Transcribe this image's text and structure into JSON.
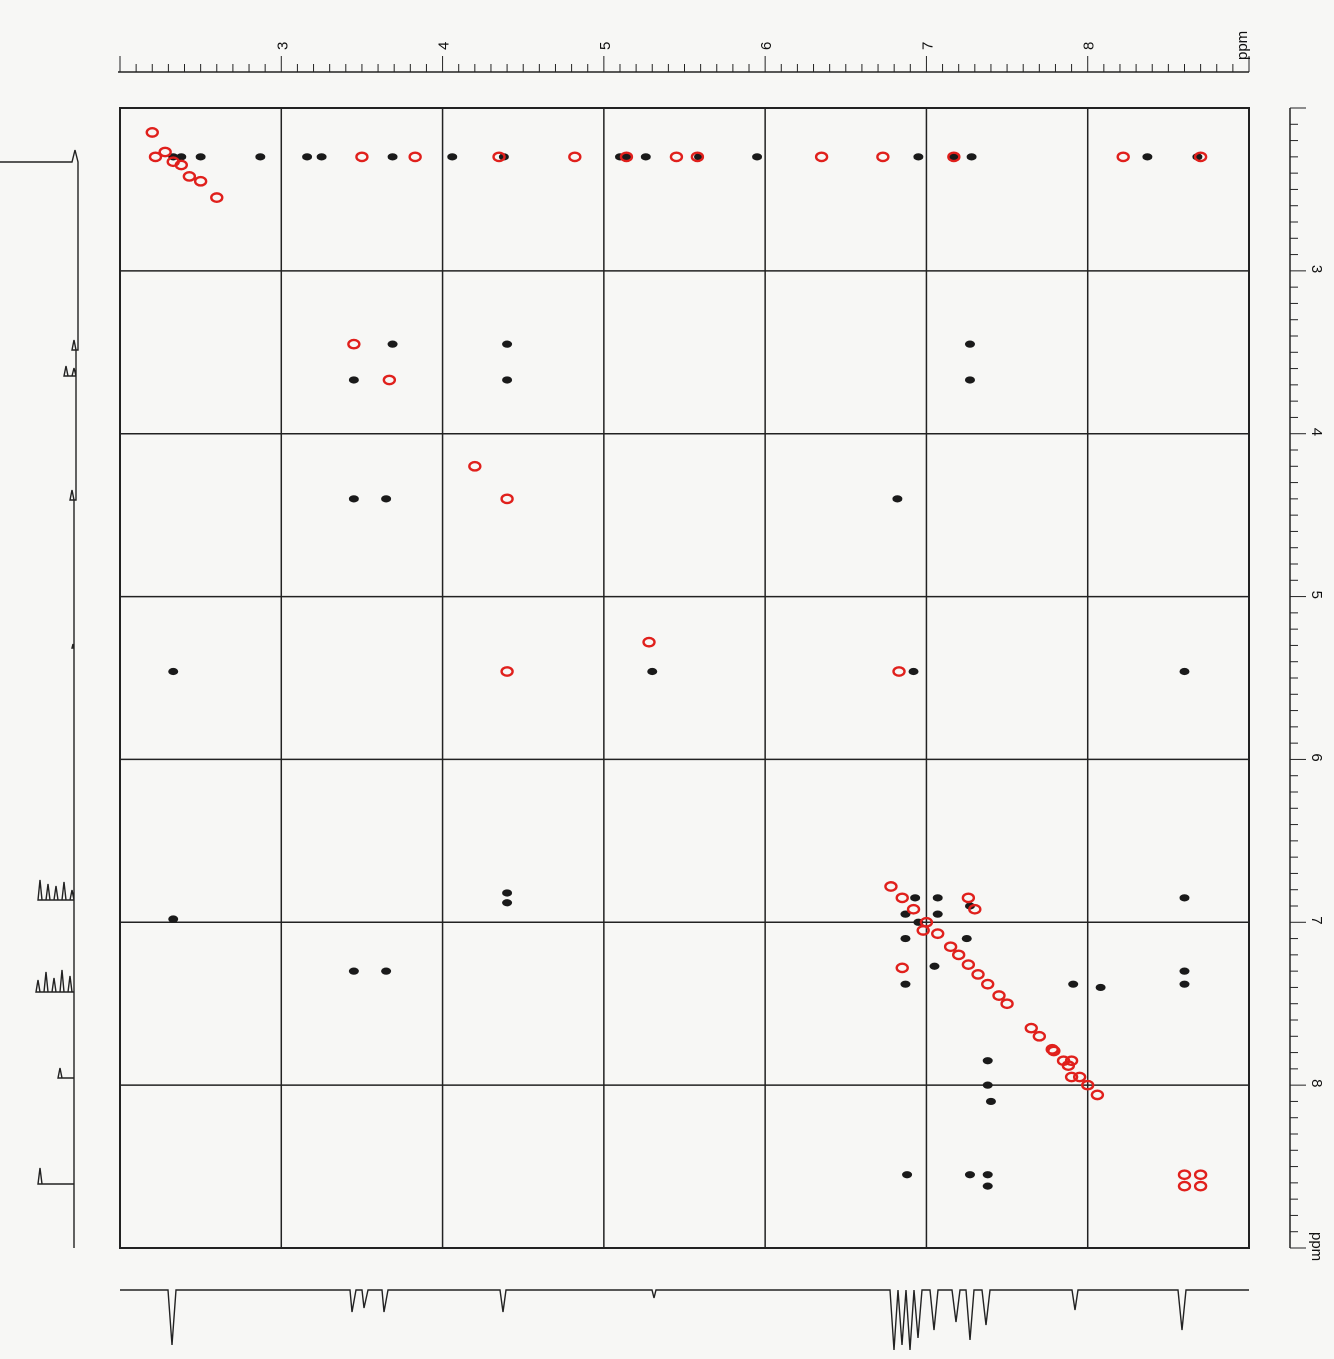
{
  "chart_data": {
    "type": "scatter",
    "title": "",
    "xlabel": "ppm",
    "ylabel": "ppm",
    "xlim": [
      2.0,
      9.0
    ],
    "ylim": [
      2.0,
      9.0
    ],
    "xticks": [
      "3",
      "4",
      "5",
      "6",
      "7",
      "8"
    ],
    "yticks": [
      "3",
      "4",
      "5",
      "6",
      "7",
      "8"
    ],
    "grid": true,
    "colors": {
      "positive": "#1a1a1a",
      "negative": "#e0201c",
      "axis": "#222222"
    },
    "series": [
      {
        "color": "#1a1a1a",
        "points": [
          [
            2.33,
            2.3
          ],
          [
            2.38,
            2.3
          ],
          [
            2.5,
            2.3
          ],
          [
            2.87,
            2.3
          ],
          [
            3.16,
            2.3
          ],
          [
            3.25,
            2.3
          ],
          [
            3.69,
            2.3
          ],
          [
            4.06,
            2.3
          ],
          [
            4.38,
            2.3
          ],
          [
            5.1,
            2.3
          ],
          [
            5.14,
            2.3
          ],
          [
            5.26,
            2.3
          ],
          [
            5.59,
            2.3
          ],
          [
            5.95,
            2.3
          ],
          [
            6.95,
            2.3
          ],
          [
            7.17,
            2.3
          ],
          [
            7.28,
            2.3
          ],
          [
            8.37,
            2.3
          ],
          [
            8.68,
            2.3
          ],
          [
            3.69,
            3.45
          ],
          [
            4.4,
            3.45
          ],
          [
            7.27,
            3.45
          ],
          [
            3.45,
            3.67
          ],
          [
            4.4,
            3.67
          ],
          [
            7.27,
            3.67
          ],
          [
            3.45,
            4.4
          ],
          [
            3.65,
            4.4
          ],
          [
            6.82,
            4.4
          ],
          [
            2.33,
            5.46
          ],
          [
            5.3,
            5.46
          ],
          [
            6.92,
            5.46
          ],
          [
            8.6,
            5.46
          ],
          [
            4.4,
            6.82
          ],
          [
            4.4,
            6.88
          ],
          [
            8.6,
            6.85
          ],
          [
            2.33,
            6.98
          ],
          [
            6.93,
            6.85
          ],
          [
            7.07,
            6.85
          ],
          [
            6.87,
            6.95
          ],
          [
            7.07,
            6.95
          ],
          [
            7.27,
            6.9
          ],
          [
            6.95,
            7.0
          ],
          [
            6.87,
            7.1
          ],
          [
            7.25,
            7.1
          ],
          [
            7.05,
            7.27
          ],
          [
            3.45,
            7.3
          ],
          [
            3.65,
            7.3
          ],
          [
            6.87,
            7.38
          ],
          [
            7.91,
            7.38
          ],
          [
            8.6,
            7.38
          ],
          [
            8.6,
            7.3
          ],
          [
            8.08,
            7.4
          ],
          [
            7.38,
            7.85
          ],
          [
            7.38,
            8.0
          ],
          [
            7.4,
            8.1
          ],
          [
            6.88,
            8.55
          ],
          [
            7.27,
            8.55
          ],
          [
            7.38,
            8.55
          ],
          [
            7.38,
            8.62
          ]
        ]
      },
      {
        "color": "#e0201c",
        "points": [
          [
            2.22,
            2.3
          ],
          [
            2.28,
            2.27
          ],
          [
            2.33,
            2.33
          ],
          [
            2.38,
            2.35
          ],
          [
            2.43,
            2.42
          ],
          [
            2.5,
            2.45
          ],
          [
            2.6,
            2.55
          ],
          [
            2.2,
            2.15
          ],
          [
            3.5,
            2.3
          ],
          [
            3.83,
            2.3
          ],
          [
            4.35,
            2.3
          ],
          [
            4.82,
            2.3
          ],
          [
            5.14,
            2.3
          ],
          [
            5.45,
            2.3
          ],
          [
            5.58,
            2.3
          ],
          [
            6.35,
            2.3
          ],
          [
            6.73,
            2.3
          ],
          [
            7.17,
            2.3
          ],
          [
            8.22,
            2.3
          ],
          [
            8.7,
            2.3
          ],
          [
            3.45,
            3.45
          ],
          [
            3.67,
            3.67
          ],
          [
            4.2,
            4.2
          ],
          [
            4.4,
            4.4
          ],
          [
            5.28,
            5.28
          ],
          [
            4.4,
            5.46
          ],
          [
            6.83,
            5.46
          ],
          [
            6.78,
            6.78
          ],
          [
            6.85,
            6.85
          ],
          [
            6.92,
            6.92
          ],
          [
            7.0,
            7.0
          ],
          [
            7.07,
            7.07
          ],
          [
            7.15,
            7.15
          ],
          [
            7.2,
            7.2
          ],
          [
            7.26,
            7.26
          ],
          [
            7.32,
            7.32
          ],
          [
            7.38,
            7.38
          ],
          [
            7.45,
            7.45
          ],
          [
            7.5,
            7.5
          ],
          [
            7.65,
            7.65
          ],
          [
            7.7,
            7.7
          ],
          [
            7.79,
            7.79
          ],
          [
            7.85,
            7.85
          ],
          [
            7.88,
            7.88
          ],
          [
            7.95,
            7.95
          ],
          [
            8.0,
            8.0
          ],
          [
            8.06,
            8.06
          ],
          [
            7.26,
            6.85
          ],
          [
            7.3,
            6.92
          ],
          [
            7.78,
            7.78
          ],
          [
            7.9,
            7.85
          ],
          [
            7.9,
            7.95
          ],
          [
            6.85,
            7.28
          ],
          [
            6.98,
            7.05
          ],
          [
            8.6,
            8.55
          ],
          [
            8.6,
            8.62
          ],
          [
            8.7,
            8.55
          ],
          [
            8.7,
            8.62
          ]
        ]
      }
    ]
  }
}
